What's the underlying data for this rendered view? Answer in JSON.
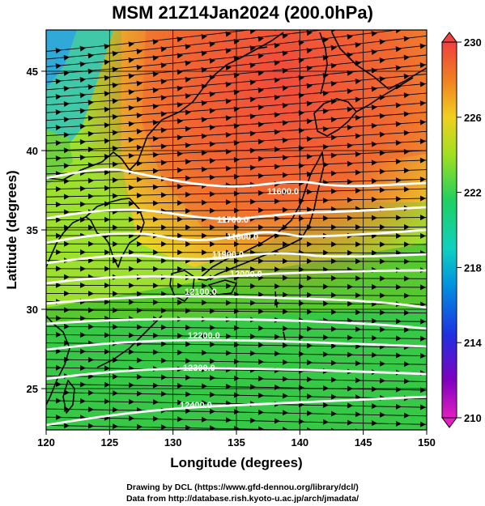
{
  "title": "MSM 21Z14Jan2024 (200.0hPa)",
  "xlabel": "Longitude (degrees)",
  "ylabel": "Latitude  (degrees)",
  "x_ticks": [
    "120",
    "125",
    "130",
    "135",
    "140",
    "145",
    "150"
  ],
  "y_ticks": [
    "25",
    "30",
    "35",
    "40",
    "45"
  ],
  "colorbar": {
    "labels": [
      "230",
      "226",
      "222",
      "218",
      "214",
      "210"
    ],
    "min": 210,
    "max": 230,
    "colors": [
      "#e020c0",
      "#8000c0",
      "#2030e0",
      "#0090e0",
      "#10d0c0",
      "#20d060",
      "#a0e020",
      "#f0d020",
      "#f08020",
      "#f04040"
    ]
  },
  "contours": [
    {
      "label": "11600.0"
    },
    {
      "label": "11700.0"
    },
    {
      "label": "11800.0"
    },
    {
      "label": "11900.0"
    },
    {
      "label": "12000.0"
    },
    {
      "label": "12100.0"
    },
    {
      "label": "12200.0"
    },
    {
      "label": "12300.0"
    },
    {
      "label": "12400.0"
    }
  ],
  "credit": {
    "line1": "Drawing by DCL (https://www.gfd-dennou.org/library/dcl/)",
    "line2": "Data from http://database.rish.kyoto-u.ac.jp/arch/jmadata/"
  },
  "chart_data": {
    "type": "heatmap",
    "title": "MSM 21Z14Jan2024 (200.0hPa)",
    "xlabel": "Longitude (degrees)",
    "ylabel": "Latitude  (degrees)",
    "xlim": [
      120,
      150
    ],
    "ylim": [
      22.4,
      47.6
    ],
    "color_range": [
      210,
      230
    ],
    "overlays": [
      "geopotential height contours",
      "wind streamlines",
      "coastlines"
    ]
  }
}
